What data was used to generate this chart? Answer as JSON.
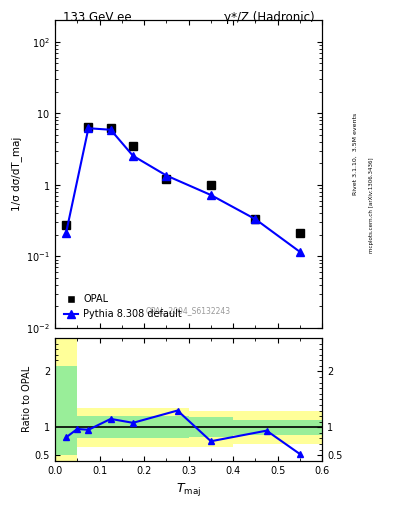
{
  "title_left": "133 GeV ee",
  "title_right": "γ*/Z (Hadronic)",
  "rivet_label": "Rivet 3.1.10,  3.5M events",
  "mcplots_label": "mcplots.cern.ch [arXiv:1306.3436]",
  "ref_label": "OPAL_2004_S6132243",
  "ylabel_main": "1/σ dσ/dT_maj",
  "ylabel_ratio": "Ratio to OPAL",
  "opal_x": [
    0.025,
    0.075,
    0.125,
    0.175,
    0.25,
    0.35,
    0.45,
    0.55
  ],
  "opal_y": [
    0.27,
    6.5,
    6.2,
    3.5,
    1.2,
    1.0,
    0.33,
    0.21
  ],
  "pythia_x": [
    0.025,
    0.075,
    0.125,
    0.175,
    0.25,
    0.35,
    0.45,
    0.55
  ],
  "pythia_y": [
    0.215,
    6.2,
    5.9,
    2.55,
    1.35,
    0.72,
    0.33,
    0.115
  ],
  "ylim_main": [
    0.01,
    200
  ],
  "ylim_ratio": [
    0.4,
    2.6
  ],
  "xlim": [
    0.0,
    0.6
  ],
  "ratio_x": [
    0.025,
    0.05,
    0.075,
    0.125,
    0.175,
    0.275,
    0.35,
    0.475,
    0.55
  ],
  "ratio_y": [
    0.82,
    0.97,
    0.955,
    1.15,
    1.08,
    1.3,
    0.75,
    0.94,
    0.52
  ],
  "band_edges": [
    0.0,
    0.05,
    0.1,
    0.2,
    0.3,
    0.4,
    0.5,
    0.6
  ],
  "band_yellow_lo": [
    0.35,
    0.65,
    0.65,
    0.65,
    0.65,
    0.7,
    0.7,
    0.7
  ],
  "band_yellow_hi": [
    2.6,
    1.35,
    1.35,
    1.35,
    1.3,
    1.3,
    1.3,
    1.3
  ],
  "band_green_lo": [
    0.5,
    0.8,
    0.8,
    0.8,
    0.82,
    0.87,
    0.87,
    0.87
  ],
  "band_green_hi": [
    2.1,
    1.2,
    1.2,
    1.2,
    1.18,
    1.13,
    1.13,
    1.13
  ],
  "opal_color": "black",
  "pythia_color": "blue",
  "yellow_color": "#ffff99",
  "green_color": "#99ee99"
}
